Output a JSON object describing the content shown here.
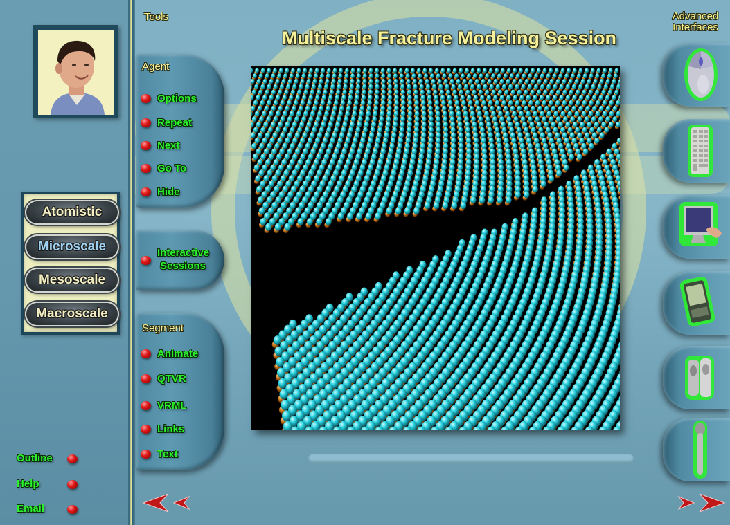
{
  "header": {
    "title": "Multiscale Fracture Modeling Session",
    "tools_label": "Tools",
    "advanced_interfaces_label": "Advanced Interfaces"
  },
  "scales": {
    "items": [
      "Atomistic",
      "Microscale",
      "Mesoscale",
      "Macroscale"
    ],
    "active": "Microscale"
  },
  "agent_tab": {
    "header": "Agent",
    "items": [
      "Options",
      "Repeat",
      "Next",
      "Go To",
      "Hide"
    ]
  },
  "sessions_tab": {
    "line1": "Interactive",
    "line2": "Sessions"
  },
  "segment_tab": {
    "header": "Segment",
    "items": [
      "Animate",
      "QTVR",
      "VRML",
      "Links",
      "Text"
    ]
  },
  "footer_links": [
    "Outline",
    "Help",
    "Email"
  ],
  "devices": [
    "mouse-icon",
    "keyboard-icon",
    "touchscreen-icon",
    "pda-icon",
    "speakers-icon",
    "microphone-icon"
  ],
  "colors": {
    "label_green": "#2cf12c",
    "title_yellow": "#f4f09a",
    "atom_cyan": "#27d0dd",
    "atom_orange": "#c7781a",
    "active_scale": "#9fd0f0"
  }
}
